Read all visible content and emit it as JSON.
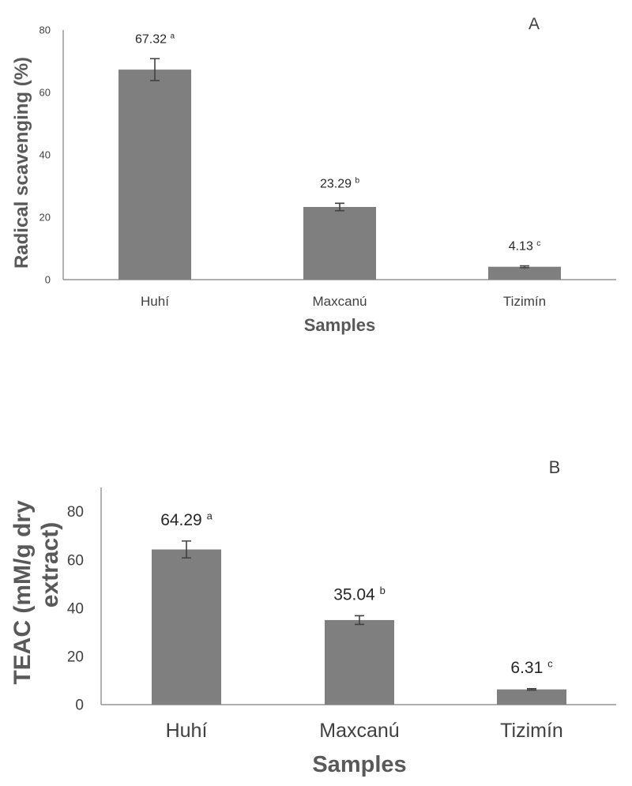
{
  "chart_data": [
    {
      "type": "bar",
      "panel": "A",
      "categories": [
        "Huhí",
        "Maxcanú",
        "Tizimín"
      ],
      "values": [
        67.32,
        23.29,
        4.13
      ],
      "errors": [
        3.5,
        1.2,
        0.3
      ],
      "value_labels": [
        "67.32",
        "23.29",
        "4.13"
      ],
      "letters": [
        "a",
        "b",
        "c"
      ],
      "title": "",
      "xlabel": "Samples",
      "ylabel": "Radical scavenging (%)",
      "ylim": [
        0,
        80
      ],
      "yticks": [
        "0",
        "20",
        "40",
        "60",
        "80"
      ],
      "grid": false,
      "bar_color": "#7f7f7f"
    },
    {
      "type": "bar",
      "panel": "B",
      "categories": [
        "Huhí",
        "Maxcanú",
        "Tizimín"
      ],
      "values": [
        64.29,
        35.04,
        6.31
      ],
      "errors": [
        3.5,
        1.8,
        0.3
      ],
      "value_labels": [
        "64.29",
        "35.04",
        "6.31"
      ],
      "letters": [
        "a",
        "b",
        "c"
      ],
      "title": "",
      "xlabel": "Samples",
      "ylabel": "TEAC (mM/g dry extract)",
      "ylabel_lines": [
        "TEAC (mM/g dry",
        "extract)"
      ],
      "ylim": [
        0,
        90
      ],
      "yticks": [
        "0",
        "20",
        "40",
        "60",
        "80"
      ],
      "grid": false,
      "bar_color": "#7f7f7f"
    }
  ]
}
